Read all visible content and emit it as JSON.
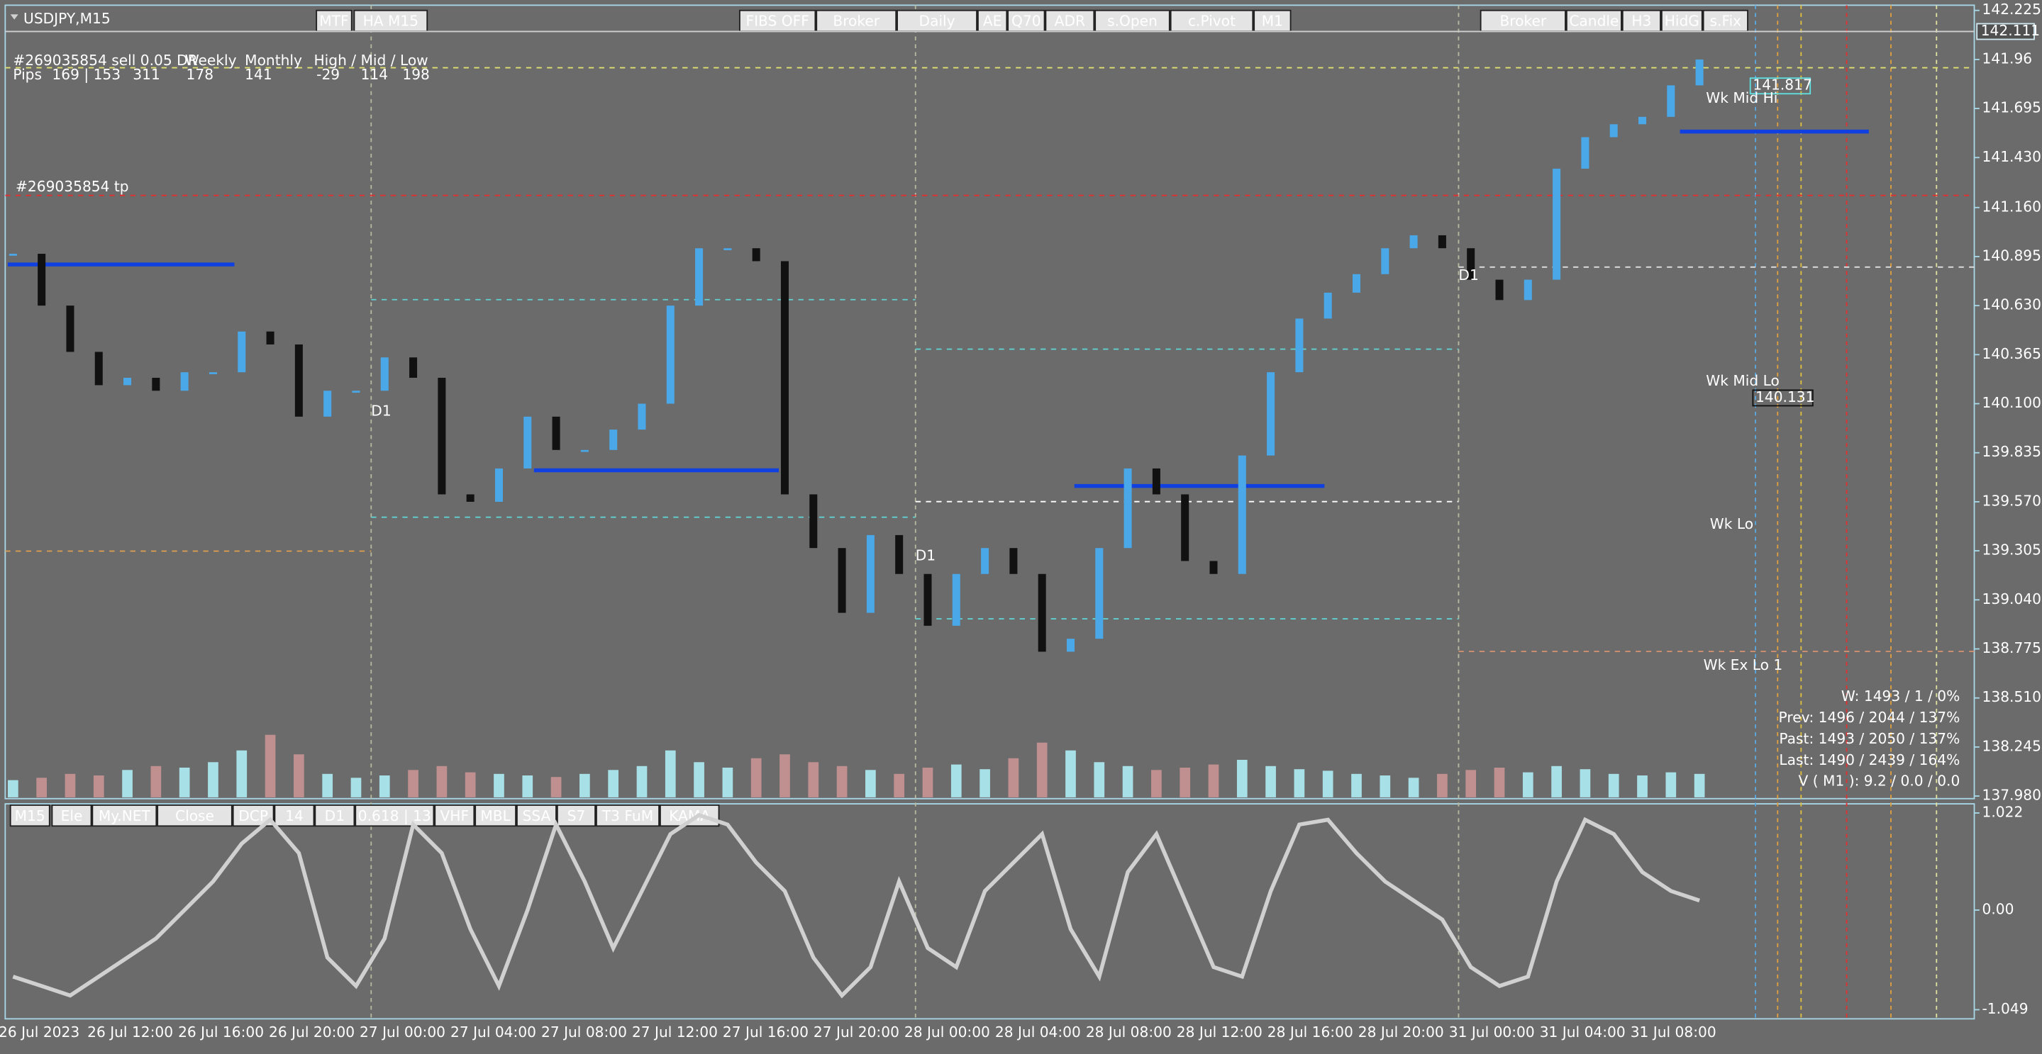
{
  "window": {
    "title": "USDJPY,M15"
  },
  "top_buttons": [
    {
      "label": "MTF",
      "color": "#8a8a8a"
    },
    {
      "label": "HA M15",
      "color": "#e02020"
    },
    {
      "label": "FIBS OFF",
      "color": "#000000"
    },
    {
      "label": "Broker",
      "color": "#1030d0"
    },
    {
      "label": "Daily",
      "color": "#e02020"
    },
    {
      "label": "AE",
      "color": "#e02020"
    },
    {
      "label": "Q70",
      "color": "#000000"
    },
    {
      "label": "ADR",
      "color": "#e02020"
    },
    {
      "label": "s.Open",
      "color": "#e02020"
    },
    {
      "label": "c.Pivot",
      "color": "#000000"
    },
    {
      "label": "M1",
      "color": "#000000"
    },
    {
      "label": "Broker",
      "color": "#1030d0"
    },
    {
      "label": "Candle",
      "color": "#000000"
    },
    {
      "label": "H3",
      "color": "#1030d0"
    },
    {
      "label": "HidG",
      "color": "#000000"
    },
    {
      "label": "s.Fix",
      "color": "#9a9a9a"
    }
  ],
  "info": {
    "order": "#269035854 sell 0.05 DR",
    "weekly": "Weekly",
    "monthly": "Monthly",
    "hml": "High / Mid / Low",
    "pips": "Pips",
    "v1": "169 | 153",
    "v2": "311",
    "v3": "178",
    "v4": "141",
    "v5": "-29",
    "v6": "114",
    "v7": "198",
    "tp": "#269035854 tp"
  },
  "price_chart": {
    "closes": [
      140.91,
      140.63,
      140.38,
      140.2,
      140.24,
      140.17,
      140.27,
      140.27,
      140.49,
      140.42,
      140.03,
      140.17,
      140.17,
      140.35,
      140.24,
      139.61,
      139.57,
      139.75,
      140.03,
      139.85,
      139.85,
      139.96,
      140.1,
      140.63,
      140.94,
      140.94,
      140.87,
      139.61,
      139.32,
      138.97,
      139.39,
      139.18,
      138.9,
      139.18,
      139.32,
      139.18,
      138.76,
      138.83,
      139.32,
      139.75,
      139.61,
      139.25,
      139.18,
      139.82,
      140.27,
      140.56,
      140.7,
      140.8,
      140.94,
      141.01,
      140.94,
      140.77,
      140.66,
      140.77,
      141.37,
      141.54,
      141.61,
      141.65,
      141.82,
      141.96
    ],
    "volumes": [
      22,
      25,
      30,
      28,
      35,
      40,
      38,
      45,
      60,
      80,
      55,
      30,
      25,
      28,
      35,
      40,
      32,
      30,
      28,
      26,
      30,
      35,
      40,
      60,
      45,
      38,
      50,
      55,
      45,
      40,
      35,
      30,
      38,
      42,
      36,
      50,
      70,
      60,
      45,
      40,
      35,
      38,
      42,
      48,
      40,
      36,
      34,
      30,
      28,
      25,
      30,
      35,
      38,
      32,
      40,
      36,
      30,
      28,
      32,
      30
    ],
    "ylim": [
      137.98,
      142.225
    ],
    "yticks": [
      142.225,
      141.96,
      141.695,
      {
        "value": 141.43,
        "label": "141.430"
      },
      {
        "value": 141.16,
        "label": "141.160"
      },
      140.895,
      {
        "value": 140.63,
        "label": "140.630"
      },
      140.365,
      {
        "value": 140.1,
        "label": "140.100"
      },
      139.835,
      {
        "value": 139.57,
        "label": "139.570"
      },
      139.305,
      {
        "value": 139.04,
        "label": "139.040"
      },
      138.775,
      {
        "value": 138.51,
        "label": "138.510"
      },
      138.245,
      {
        "value": 137.98,
        "label": "137.980"
      }
    ],
    "current_price": 142.111,
    "price_labels": [
      141.817,
      140.131
    ],
    "level_labels": [
      "Wk Mid Hi",
      "Wk Mid Lo",
      "Wk Lo",
      "Wk Ex Lo 1"
    ],
    "d1_labels": [
      "D1",
      "D1",
      "D1"
    ]
  },
  "stats": [
    "W: 1493 / 1 / 0%",
    "Prev: 1496 / 2044 / 137%",
    "Past: 1493 / 2050 / 137%",
    "Last: 1490 / 2439 / 164%",
    "V ( M1 ): 9.2 / 0.0 / 0.0"
  ],
  "bottom_buttons": [
    {
      "label": "M15",
      "color": "#000000"
    },
    {
      "label": "Ele",
      "color": "#1030d0"
    },
    {
      "label": "My.NET",
      "color": "#1030d0"
    },
    {
      "label": "Close",
      "color": "#1030d0"
    },
    {
      "label": "DCP",
      "color": "#8a8a8a"
    },
    {
      "label": "14",
      "color": "#000000"
    },
    {
      "label": "D1",
      "color": "#1030d0"
    },
    {
      "label": "0.618 | 13",
      "color": "#1030d0"
    },
    {
      "label": "VHF",
      "color": "#e02020"
    },
    {
      "label": "MBL",
      "color": "#e02020"
    },
    {
      "label": "SSA",
      "color": "#e02020"
    },
    {
      "label": "S7",
      "color": "#e02020"
    },
    {
      "label": "T3 FuM",
      "color": "#1030d0"
    },
    {
      "label": "KAMA",
      "color": "#e02020"
    }
  ],
  "oscillator": {
    "values": [
      -0.7,
      -0.8,
      -0.9,
      -0.7,
      -0.5,
      -0.3,
      0.0,
      0.3,
      0.7,
      0.95,
      0.6,
      -0.5,
      -0.8,
      -0.3,
      0.9,
      0.6,
      -0.2,
      -0.8,
      0.0,
      0.9,
      0.3,
      -0.4,
      0.2,
      0.8,
      1.0,
      0.9,
      0.5,
      0.2,
      -0.5,
      -0.9,
      -0.6,
      0.3,
      -0.4,
      -0.6,
      0.2,
      0.5,
      0.8,
      -0.2,
      -0.7,
      0.4,
      0.8,
      0.1,
      -0.6,
      -0.7,
      0.2,
      0.9,
      0.95,
      0.6,
      0.3,
      0.1,
      -0.1,
      -0.6,
      -0.8,
      -0.7,
      0.3,
      0.95,
      0.8,
      0.4,
      0.2,
      0.1
    ],
    "ylim": [
      -1.049,
      1.022
    ],
    "yticks": [
      1.022,
      {
        "value": 0,
        "label": "0.00"
      },
      -1.049
    ]
  },
  "time_axis": [
    "26 Jul 2023",
    "26 Jul 12:00",
    "26 Jul 16:00",
    "26 Jul 20:00",
    "27 Jul 00:00",
    "27 Jul 04:00",
    "27 Jul 08:00",
    "27 Jul 12:00",
    "27 Jul 16:00",
    "27 Jul 20:00",
    "28 Jul 00:00",
    "28 Jul 04:00",
    "28 Jul 08:00",
    "28 Jul 12:00",
    "28 Jul 16:00",
    "28 Jul 20:00",
    "31 Jul 00:00",
    "31 Jul 04:00",
    "31 Jul 08:00"
  ]
}
